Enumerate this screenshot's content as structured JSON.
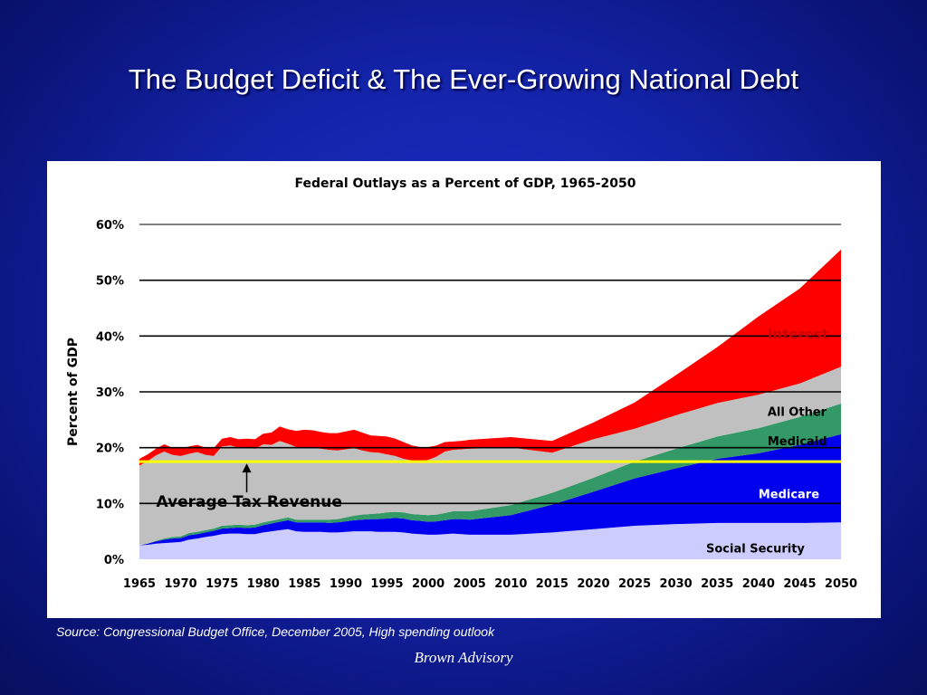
{
  "slide": {
    "title": "The Budget Deficit & The Ever-Growing National Debt",
    "source": "Source:  Congressional Budget Office, December 2005, High spending outlook",
    "footer": "Brown Advisory"
  },
  "chart_data": {
    "type": "area",
    "title": "Federal Outlays as a Percent of GDP, 1965-2050",
    "xlabel": "",
    "ylabel": "Percent of GDP",
    "x": [
      1965,
      1966,
      1967,
      1968,
      1969,
      1970,
      1971,
      1972,
      1973,
      1974,
      1975,
      1976,
      1977,
      1978,
      1979,
      1980,
      1981,
      1982,
      1983,
      1984,
      1985,
      1986,
      1987,
      1988,
      1989,
      1990,
      1991,
      1992,
      1993,
      1994,
      1995,
      1996,
      1997,
      1998,
      1999,
      2000,
      2001,
      2002,
      2003,
      2004,
      2005,
      2010,
      2015,
      2020,
      2025,
      2030,
      2035,
      2040,
      2045,
      2050
    ],
    "xticks": [
      "1965",
      "1970",
      "1975",
      "1980",
      "1985",
      "1990",
      "1995",
      "2000",
      "2005",
      "2010",
      "2015",
      "2020",
      "2025",
      "2030",
      "2035",
      "2040",
      "2045",
      "2050"
    ],
    "xlim": [
      1965,
      2050
    ],
    "ylim": [
      0,
      60
    ],
    "yticks": [
      "0%",
      "10%",
      "20%",
      "30%",
      "40%",
      "50%",
      "60%"
    ],
    "stacking": "stacked",
    "series": [
      {
        "name": "Social Security",
        "color": "#ccccff",
        "values": [
          2.5,
          2.6,
          2.8,
          2.9,
          3.0,
          3.1,
          3.5,
          3.7,
          4.0,
          4.2,
          4.5,
          4.6,
          4.6,
          4.5,
          4.5,
          4.8,
          5.0,
          5.2,
          5.4,
          5.0,
          4.9,
          4.9,
          4.9,
          4.8,
          4.8,
          4.9,
          5.0,
          5.0,
          5.0,
          4.9,
          4.9,
          4.9,
          4.8,
          4.6,
          4.5,
          4.4,
          4.4,
          4.5,
          4.6,
          4.5,
          4.4,
          4.4,
          4.8,
          5.4,
          6.0,
          6.3,
          6.5,
          6.5,
          6.5,
          6.6
        ]
      },
      {
        "name": "Medicare",
        "color": "#0000ee",
        "values": [
          0.0,
          0.2,
          0.4,
          0.6,
          0.7,
          0.7,
          0.8,
          0.8,
          0.8,
          0.9,
          1.0,
          1.0,
          1.1,
          1.1,
          1.2,
          1.3,
          1.4,
          1.5,
          1.6,
          1.6,
          1.7,
          1.7,
          1.7,
          1.7,
          1.8,
          1.9,
          2.0,
          2.1,
          2.2,
          2.3,
          2.4,
          2.5,
          2.5,
          2.4,
          2.4,
          2.3,
          2.4,
          2.5,
          2.6,
          2.7,
          2.7,
          3.5,
          5.0,
          6.7,
          8.5,
          10.0,
          11.5,
          12.5,
          14.0,
          15.8
        ]
      },
      {
        "name": "Medicaid",
        "color": "#339966",
        "values": [
          0.0,
          0.0,
          0.1,
          0.2,
          0.3,
          0.3,
          0.4,
          0.4,
          0.4,
          0.4,
          0.5,
          0.5,
          0.5,
          0.5,
          0.5,
          0.5,
          0.5,
          0.5,
          0.5,
          0.5,
          0.5,
          0.5,
          0.5,
          0.6,
          0.6,
          0.7,
          0.8,
          0.9,
          0.9,
          1.0,
          1.1,
          1.1,
          1.1,
          1.1,
          1.1,
          1.2,
          1.2,
          1.3,
          1.4,
          1.4,
          1.5,
          1.8,
          2.1,
          2.5,
          3.0,
          3.5,
          4.0,
          4.5,
          5.0,
          5.5
        ]
      },
      {
        "name": "All Other",
        "color": "#c0c0c0",
        "values": [
          14.3,
          14.8,
          15.3,
          15.6,
          14.7,
          14.4,
          14.2,
          14.3,
          13.5,
          13.0,
          14.2,
          14.3,
          13.8,
          13.9,
          13.6,
          14.0,
          13.6,
          14.0,
          13.2,
          13.0,
          13.0,
          12.9,
          12.7,
          12.5,
          12.3,
          12.2,
          12.1,
          11.5,
          11.1,
          10.9,
          10.4,
          10.0,
          9.6,
          9.6,
          9.6,
          9.9,
          10.4,
          11.0,
          11.0,
          11.1,
          11.2,
          10.3,
          7.2,
          6.9,
          5.9,
          6.0,
          6.0,
          6.0,
          6.0,
          6.6
        ]
      },
      {
        "name": "Interest",
        "color": "#ff0000",
        "values": [
          1.2,
          1.2,
          1.2,
          1.3,
          1.3,
          1.4,
          1.3,
          1.3,
          1.3,
          1.4,
          1.4,
          1.5,
          1.5,
          1.6,
          1.7,
          1.9,
          2.2,
          2.6,
          2.6,
          2.9,
          3.1,
          3.1,
          3.0,
          3.0,
          3.1,
          3.2,
          3.3,
          3.2,
          3.0,
          3.0,
          3.2,
          3.1,
          3.0,
          2.7,
          2.5,
          2.3,
          2.0,
          1.7,
          1.5,
          1.5,
          1.6,
          1.9,
          2.1,
          3.0,
          4.7,
          7.2,
          10.0,
          14.0,
          17.0,
          21.0
        ]
      }
    ],
    "reference_line": {
      "label": "Average Tax Revenue",
      "value": 17.5,
      "color": "#ffff00",
      "annotation_x": 1978
    },
    "legend": "inline-right",
    "grid": true
  }
}
